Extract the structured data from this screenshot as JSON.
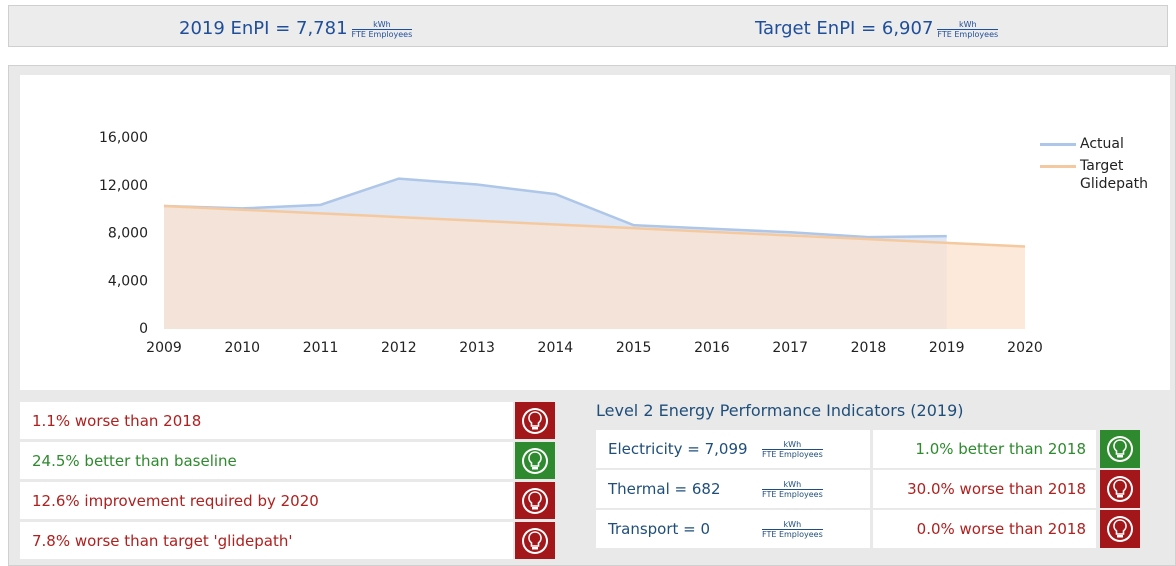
{
  "header": {
    "left": "2019 EnPI = 7,781",
    "right": "Target EnPI = 6,907"
  },
  "unit": {
    "numerator": "kWh",
    "denominator": "FTE Employees"
  },
  "chart_data": {
    "type": "area",
    "x": [
      2009,
      2010,
      2011,
      2012,
      2013,
      2014,
      2015,
      2016,
      2017,
      2018,
      2019,
      2020
    ],
    "xlim": [
      2009,
      2020
    ],
    "xticks": [
      2009,
      2010,
      2011,
      2012,
      2013,
      2014,
      2015,
      2016,
      2017,
      2018,
      2019,
      2020
    ],
    "ylim": [
      0,
      16000
    ],
    "yticks": [
      0,
      {
        "value": 4000,
        "label": "4,000"
      },
      {
        "value": 8000,
        "label": "8,000"
      },
      {
        "value": 12000,
        "label": "12,000"
      },
      {
        "value": 16000,
        "label": "16,000"
      }
    ],
    "grid": false,
    "legend": "right",
    "series": [
      {
        "name": "Actual",
        "color": "#aec6e8",
        "fill": "#dde7f6",
        "values": [
          10300,
          10100,
          10400,
          12600,
          12100,
          11300,
          8700,
          8400,
          8100,
          7700,
          7781,
          null
        ]
      },
      {
        "name": "Target Glidepath",
        "color": "#f5c9a0",
        "fill": "#fbe2cd",
        "values": [
          10300,
          9992,
          9683,
          9375,
          9066,
          8758,
          8449,
          8141,
          7832,
          7524,
          7215,
          6907
        ]
      }
    ]
  },
  "indicators": [
    {
      "text": "1.1% worse than 2018",
      "color": "#b0201f",
      "icon": "#a3161a"
    },
    {
      "text": "24.5% better than baseline",
      "color": "#2e8a2e",
      "icon": "#2f8a2f"
    },
    {
      "text": "12.6% improvement required by 2020",
      "color": "#b0201f",
      "icon": "#a3161a"
    },
    {
      "text": "7.8% worse than target 'glidepath'",
      "color": "#b0201f",
      "icon": "#a3161a"
    }
  ],
  "level2": {
    "title": "Level 2 Energy Performance Indicators (2019)",
    "rows": [
      {
        "label": "Electricity = 7,099",
        "comparison": "1.0% better than 2018",
        "color": "#2e8a2e",
        "icon": "#2f8a2f"
      },
      {
        "label": "Thermal = 682",
        "comparison": "30.0% worse than 2018",
        "color": "#b0201f",
        "icon": "#a3161a"
      },
      {
        "label": "Transport = 0",
        "comparison": "0.0% worse than 2018",
        "color": "#b0201f",
        "icon": "#a3161a"
      }
    ]
  }
}
